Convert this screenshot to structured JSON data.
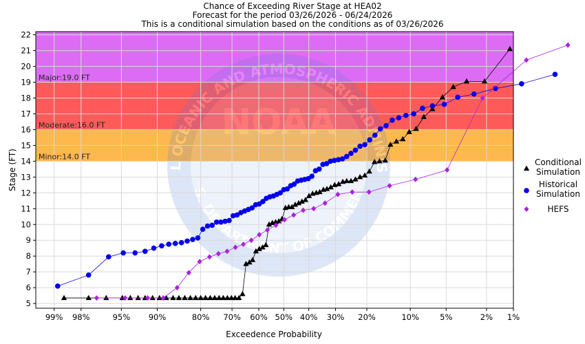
{
  "chart_data": {
    "type": "scatter",
    "title_lines": [
      "Chance of Exceeding River Stage at HEA02",
      "Forecast for the period 03/26/2026 - 06/24/2026",
      "This is a conditional simulation based on the conditions as of 03/26/2026"
    ],
    "xlabel": "Exceedence Probability",
    "ylabel": "Stage (FT)",
    "x_scale": "normal-probability (reversed)",
    "xlim": [
      99.4,
      1
    ],
    "ylim": [
      4.7,
      22.2
    ],
    "x_ticks": [
      {
        "value": 99,
        "label": "99%"
      },
      {
        "value": 98,
        "label": "98%"
      },
      {
        "value": 95,
        "label": "95%"
      },
      {
        "value": 90,
        "label": "90%"
      },
      {
        "value": 80,
        "label": "80%"
      },
      {
        "value": 70,
        "label": "70%"
      },
      {
        "value": 60,
        "label": "60%"
      },
      {
        "value": 50,
        "label": "50%"
      },
      {
        "value": 40,
        "label": "40%"
      },
      {
        "value": 30,
        "label": "30%"
      },
      {
        "value": 20,
        "label": "20%"
      },
      {
        "value": 10,
        "label": "10%"
      },
      {
        "value": 5,
        "label": "5%"
      },
      {
        "value": 2,
        "label": "2%"
      },
      {
        "value": 1,
        "label": "1%"
      }
    ],
    "y_ticks": [
      5,
      6,
      7,
      8,
      9,
      10,
      11,
      12,
      13,
      14,
      15,
      16,
      17,
      18,
      19,
      20,
      21,
      22
    ],
    "grid": true,
    "flood_categories": [
      {
        "label": "Minor:14.0 FT",
        "from": 14.0,
        "to": 16.0,
        "color": "#ffb84d"
      },
      {
        "label": "Moderate:16.0 FT",
        "from": 16.0,
        "to": 19.0,
        "color": "#ff5a5a"
      },
      {
        "label": "Major:19.0 FT",
        "from": 19.0,
        "to": 22.2,
        "color": "#dd6cf5"
      }
    ],
    "legend_position": "right",
    "series": [
      {
        "name": "Conditional Simulation",
        "legend_lines": [
          "Conditional",
          "Simulation"
        ],
        "marker": "triangle",
        "color": "#000000",
        "points": [
          [
            98.7,
            5.35
          ],
          [
            97.6,
            5.35
          ],
          [
            96.4,
            5.35
          ],
          [
            94.9,
            5.35
          ],
          [
            94.0,
            5.35
          ],
          [
            93.0,
            5.35
          ],
          [
            92.0,
            5.35
          ],
          [
            90.8,
            5.35
          ],
          [
            89.6,
            5.35
          ],
          [
            88.3,
            5.35
          ],
          [
            86.9,
            5.35
          ],
          [
            85.6,
            5.35
          ],
          [
            84.2,
            5.35
          ],
          [
            82.8,
            5.35
          ],
          [
            81.4,
            5.35
          ],
          [
            80.0,
            5.35
          ],
          [
            78.6,
            5.35
          ],
          [
            77.2,
            5.35
          ],
          [
            75.8,
            5.35
          ],
          [
            74.4,
            5.35
          ],
          [
            73.0,
            5.35
          ],
          [
            71.6,
            5.35
          ],
          [
            70.2,
            5.35
          ],
          [
            68.9,
            5.35
          ],
          [
            67.5,
            5.35
          ],
          [
            66.2,
            5.6
          ],
          [
            64.9,
            7.5
          ],
          [
            63.6,
            7.6
          ],
          [
            62.4,
            7.75
          ],
          [
            61.1,
            8.3
          ],
          [
            59.8,
            8.45
          ],
          [
            58.5,
            8.55
          ],
          [
            57.2,
            8.7
          ],
          [
            55.9,
            10.0
          ],
          [
            54.6,
            10.1
          ],
          [
            53.3,
            10.15
          ],
          [
            52.0,
            10.2
          ],
          [
            50.7,
            10.35
          ],
          [
            49.3,
            11.05
          ],
          [
            48.0,
            11.1
          ],
          [
            46.7,
            11.1
          ],
          [
            45.4,
            11.25
          ],
          [
            44.0,
            11.35
          ],
          [
            42.7,
            11.45
          ],
          [
            41.3,
            11.55
          ],
          [
            39.9,
            11.8
          ],
          [
            38.5,
            11.95
          ],
          [
            37.1,
            12.0
          ],
          [
            35.8,
            12.05
          ],
          [
            34.4,
            12.2
          ],
          [
            33.1,
            12.25
          ],
          [
            31.7,
            12.35
          ],
          [
            30.3,
            12.5
          ],
          [
            28.9,
            12.55
          ],
          [
            27.5,
            12.7
          ],
          [
            26.2,
            12.75
          ],
          [
            24.8,
            12.75
          ],
          [
            23.4,
            12.85
          ],
          [
            22.0,
            13.0
          ],
          [
            20.6,
            13.1
          ],
          [
            19.3,
            13.35
          ],
          [
            17.9,
            13.95
          ],
          [
            16.6,
            14.0
          ],
          [
            15.2,
            14.05
          ],
          [
            14.0,
            15.05
          ],
          [
            12.7,
            15.25
          ],
          [
            11.4,
            15.4
          ],
          [
            10.2,
            15.85
          ],
          [
            9.0,
            16.05
          ],
          [
            7.8,
            16.8
          ],
          [
            6.6,
            17.3
          ],
          [
            5.4,
            18.05
          ],
          [
            4.3,
            18.7
          ],
          [
            3.2,
            19.05
          ],
          [
            2.1,
            19.05
          ],
          [
            1.1,
            21.1
          ]
        ]
      },
      {
        "name": "Historical Simulation",
        "legend_lines": [
          "Historical",
          "Simulation"
        ],
        "marker": "circle",
        "color": "#0000ee",
        "points": [
          [
            98.9,
            6.1
          ],
          [
            97.6,
            6.8
          ],
          [
            96.2,
            7.95
          ],
          [
            94.8,
            8.2
          ],
          [
            93.4,
            8.2
          ],
          [
            92.0,
            8.3
          ],
          [
            90.6,
            8.5
          ],
          [
            89.2,
            8.65
          ],
          [
            87.8,
            8.75
          ],
          [
            86.4,
            8.8
          ],
          [
            85.0,
            8.85
          ],
          [
            83.6,
            8.95
          ],
          [
            82.2,
            9.05
          ],
          [
            80.8,
            9.15
          ],
          [
            79.4,
            9.7
          ],
          [
            78.0,
            9.9
          ],
          [
            76.6,
            9.95
          ],
          [
            75.2,
            10.15
          ],
          [
            73.8,
            10.15
          ],
          [
            72.4,
            10.2
          ],
          [
            71.0,
            10.25
          ],
          [
            69.6,
            10.55
          ],
          [
            68.2,
            10.6
          ],
          [
            66.8,
            10.75
          ],
          [
            65.4,
            10.85
          ],
          [
            64.0,
            10.95
          ],
          [
            62.6,
            11.05
          ],
          [
            61.2,
            11.25
          ],
          [
            59.8,
            11.3
          ],
          [
            58.4,
            11.45
          ],
          [
            57.0,
            11.65
          ],
          [
            55.6,
            11.75
          ],
          [
            54.2,
            11.8
          ],
          [
            52.8,
            11.9
          ],
          [
            51.4,
            12.0
          ],
          [
            50.0,
            12.2
          ],
          [
            48.6,
            12.25
          ],
          [
            47.2,
            12.45
          ],
          [
            45.8,
            12.55
          ],
          [
            44.4,
            12.75
          ],
          [
            43.0,
            12.8
          ],
          [
            41.6,
            12.85
          ],
          [
            40.2,
            12.9
          ],
          [
            38.8,
            13.05
          ],
          [
            37.4,
            13.4
          ],
          [
            36.0,
            13.5
          ],
          [
            34.6,
            13.8
          ],
          [
            33.2,
            13.85
          ],
          [
            31.8,
            14.0
          ],
          [
            30.4,
            14.05
          ],
          [
            29.0,
            14.1
          ],
          [
            27.6,
            14.15
          ],
          [
            26.2,
            14.3
          ],
          [
            24.8,
            14.5
          ],
          [
            23.4,
            14.7
          ],
          [
            22.0,
            14.95
          ],
          [
            20.6,
            15.05
          ],
          [
            19.2,
            15.35
          ],
          [
            17.8,
            15.65
          ],
          [
            16.4,
            16.05
          ],
          [
            15.0,
            16.25
          ],
          [
            13.6,
            16.6
          ],
          [
            12.2,
            16.75
          ],
          [
            10.8,
            16.9
          ],
          [
            9.4,
            17.0
          ],
          [
            8.0,
            17.35
          ],
          [
            6.6,
            17.5
          ],
          [
            5.2,
            17.6
          ],
          [
            3.9,
            18.05
          ],
          [
            2.7,
            18.25
          ],
          [
            1.6,
            18.6
          ],
          [
            0.8,
            18.9
          ],
          [
            0.3,
            19.5
          ]
        ]
      },
      {
        "name": "HEFS",
        "legend_lines": [
          "HEFS"
        ],
        "marker": "diamond",
        "color": "#aa22dd",
        "points": [
          [
            97.1,
            5.35
          ],
          [
            94.6,
            5.35
          ],
          [
            91.6,
            5.35
          ],
          [
            88.9,
            5.35
          ],
          [
            86.0,
            6.0
          ],
          [
            83.2,
            6.95
          ],
          [
            80.3,
            7.65
          ],
          [
            77.4,
            7.95
          ],
          [
            74.6,
            8.15
          ],
          [
            71.7,
            8.3
          ],
          [
            68.8,
            8.55
          ],
          [
            65.9,
            8.75
          ],
          [
            62.9,
            9.0
          ],
          [
            59.8,
            9.35
          ],
          [
            56.6,
            9.65
          ],
          [
            53.2,
            9.95
          ],
          [
            49.7,
            10.3
          ],
          [
            46.0,
            10.6
          ],
          [
            42.2,
            10.9
          ],
          [
            38.1,
            11.0
          ],
          [
            33.8,
            11.35
          ],
          [
            29.2,
            11.9
          ],
          [
            24.4,
            12.05
          ],
          [
            19.4,
            12.05
          ],
          [
            14.2,
            12.45
          ],
          [
            9.1,
            12.85
          ],
          [
            4.9,
            13.45
          ],
          [
            2.2,
            18.0
          ],
          [
            0.7,
            20.4
          ],
          [
            0.2,
            21.35
          ]
        ]
      }
    ]
  },
  "watermark": {
    "text": "NOAA",
    "ring_text": "NATIONAL OCEANIC AND ATMOSPHERIC ADMINISTRATION",
    "ring_text_bottom": "U.S. DEPARTMENT OF COMMERCE"
  }
}
